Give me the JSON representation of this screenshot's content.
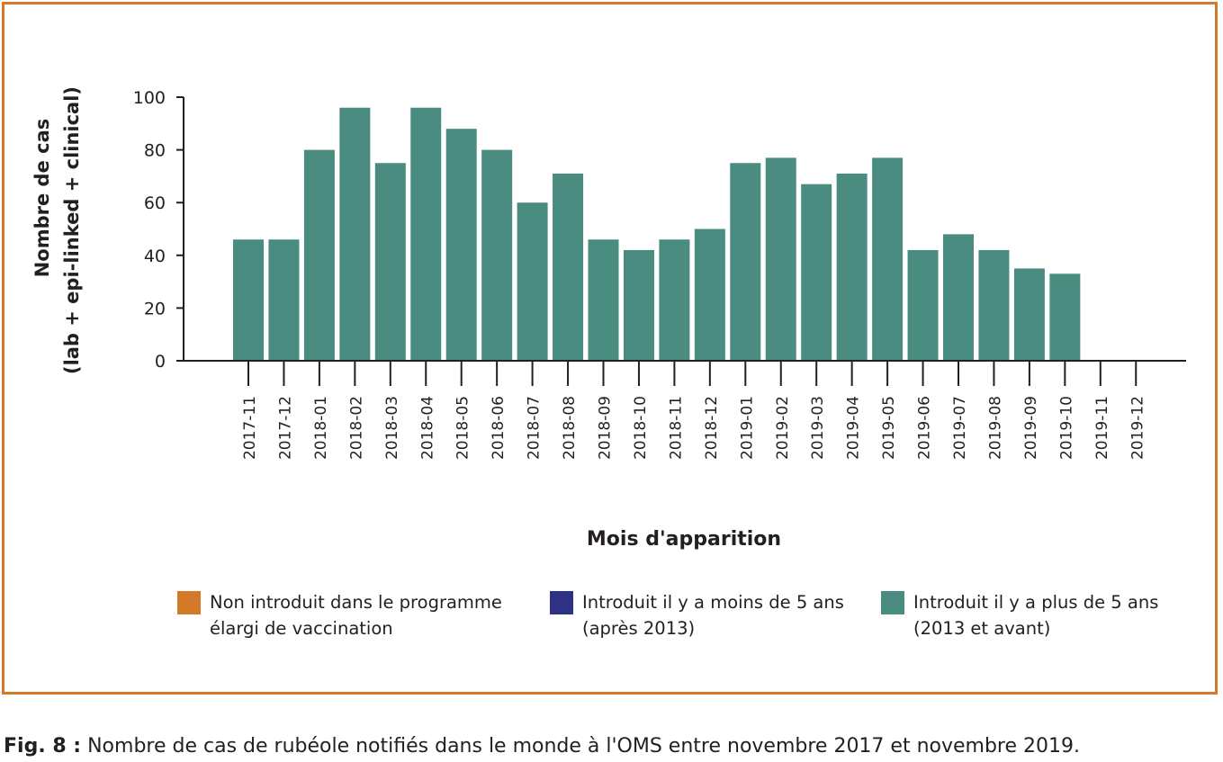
{
  "chart_data": {
    "type": "bar",
    "categories": [
      "2017-11",
      "2017-12",
      "2018-01",
      "2018-02",
      "2018-03",
      "2018-04",
      "2018-05",
      "2018-06",
      "2018-07",
      "2018-08",
      "2018-09",
      "2018-10",
      "2018-11",
      "2018-12",
      "2019-01",
      "2019-02",
      "2019-03",
      "2019-04",
      "2019-05",
      "2019-06",
      "2019-07",
      "2019-08",
      "2019-09",
      "2019-10",
      "2019-11",
      "2019-12"
    ],
    "series": [
      {
        "name": "Introduit il y a plus de 5 ans (2013 et avant)",
        "values": [
          46,
          46,
          80,
          96,
          75,
          96,
          88,
          80,
          60,
          71,
          46,
          42,
          46,
          50,
          75,
          77,
          67,
          71,
          77,
          42,
          48,
          42,
          35,
          33,
          null,
          null
        ]
      }
    ],
    "ylabel_line1": "Nombre de cas",
    "ylabel_line2": "(lab + epi-linked + clinical)",
    "xlabel": "Mois d'apparition",
    "ylim": [
      0,
      100
    ],
    "yticks": [
      0,
      20,
      40,
      60,
      80,
      100
    ],
    "grid": false,
    "bar_color": "#4a8c80"
  },
  "legend": [
    {
      "line1": "Non introduit dans le programme",
      "line2": "élargi de vaccination",
      "color": "#d4782a"
    },
    {
      "line1": "Introduit il y a moins de 5 ans",
      "line2": "(après 2013)",
      "color": "#2e3287"
    },
    {
      "line1": "Introduit il y a plus de 5 ans",
      "line2": "(2013 et avant)",
      "color": "#4a8c80"
    }
  ],
  "caption": {
    "label": "Fig. 8 :",
    "text": " Nombre de cas de rubéole notifiés dans le monde à l'OMS entre novembre 2017 et novembre 2019."
  }
}
